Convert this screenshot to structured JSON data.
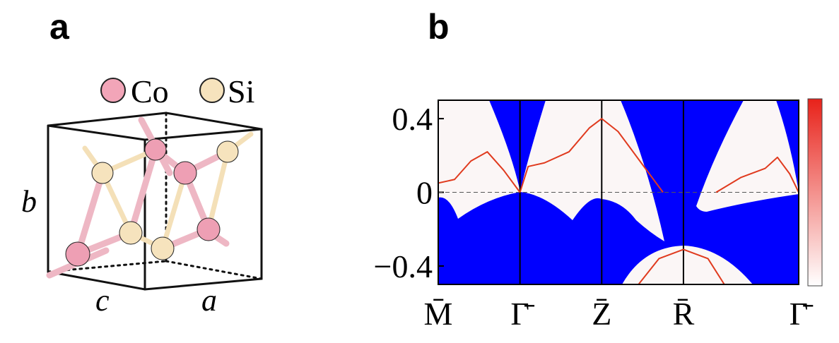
{
  "panel_a": {
    "label": "a",
    "legend": [
      "Co",
      "Si"
    ],
    "axis_labels": [
      "b",
      "c",
      "a"
    ]
  },
  "chart_data": {
    "type": "line",
    "label": "b",
    "xlim": [
      0,
      4.41
    ],
    "xticks": [
      {
        "value": 0,
        "label": "M̄"
      },
      {
        "value": 1,
        "label": "Γ̄"
      },
      {
        "value": 2,
        "label": "Z̄"
      },
      {
        "value": 3,
        "label": "R̄"
      },
      {
        "value": 4.41,
        "label": "Γ̄"
      }
    ],
    "ylim": [
      -0.5,
      0.5
    ],
    "yticks": [
      {
        "value": -0.4,
        "label": "−0.4"
      },
      0,
      0.4
    ],
    "series": [
      {
        "color": "#e03a1e",
        "x": [
          0,
          0.2,
          0.4,
          0.6,
          0.8,
          1
        ],
        "values": [
          0.05,
          0.07,
          0.17,
          0.22,
          0.12,
          0
        ]
      },
      {
        "color": "#e03a1e",
        "x": [
          1,
          1.1,
          1.3,
          1.6,
          1.85,
          2,
          2.2,
          2.5,
          2.75
        ],
        "values": [
          0,
          0.14,
          0.16,
          0.22,
          0.35,
          0.4,
          0.33,
          0.15,
          0
        ]
      },
      {
        "color": "#e03a1e",
        "x": [
          2.45,
          2.7,
          3,
          3.3,
          3.5
        ],
        "values": [
          -0.5,
          -0.36,
          -0.31,
          -0.36,
          -0.5
        ]
      },
      {
        "color": "#e03a1e",
        "x": [
          3.4,
          3.7,
          4.0,
          4.15,
          4.3,
          4.41
        ],
        "values": [
          0,
          0.08,
          0.13,
          0.19,
          0.1,
          0
        ]
      }
    ]
  }
}
